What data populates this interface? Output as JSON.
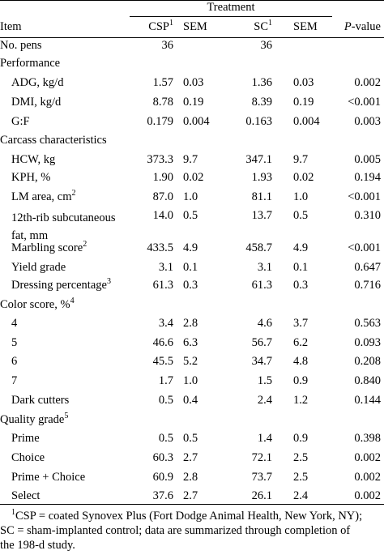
{
  "header": {
    "treatment": "Treatment",
    "item": "Item",
    "csp": "CSP",
    "csp_sup": "1",
    "sem1": "SEM",
    "sc": "SC",
    "sc_sup": "1",
    "sem2": "SEM",
    "p_italic": "P",
    "p_rest": "-value"
  },
  "rows": [
    {
      "label": "No. pens",
      "indent": false,
      "csp": "36",
      "sem1": "",
      "sc": "36",
      "sem2": "",
      "p": ""
    },
    {
      "label": "Performance",
      "indent": false,
      "csp": "",
      "sem1": "",
      "sc": "",
      "sem2": "",
      "p": ""
    },
    {
      "label": "ADG, kg/d",
      "indent": true,
      "csp": "1.57",
      "sem1": "0.03",
      "sc": "1.36",
      "sem2": "0.03",
      "p": "0.002"
    },
    {
      "label": "DMI, kg/d",
      "indent": true,
      "csp": "8.78",
      "sem1": "0.19",
      "sc": "8.39",
      "sem2": "0.19",
      "p": "<0.001"
    },
    {
      "label": "G:F",
      "indent": true,
      "csp": "0.179",
      "sem1": "0.004",
      "sc": "0.163",
      "sem2": "0.004",
      "p": "0.003"
    },
    {
      "label": "Carcass characteristics",
      "indent": false,
      "csp": "",
      "sem1": "",
      "sc": "",
      "sem2": "",
      "p": ""
    },
    {
      "label": "HCW, kg",
      "indent": true,
      "csp": "373.3",
      "sem1": "9.7",
      "sc": "347.1",
      "sem2": "9.7",
      "p": "0.005"
    },
    {
      "label": "KPH, %",
      "indent": true,
      "csp": "1.90",
      "sem1": "0.02",
      "sc": "1.93",
      "sem2": "0.02",
      "p": "0.194"
    },
    {
      "label": "LM area, cm",
      "label_sup": "2",
      "indent": true,
      "csp": "87.0",
      "sem1": "1.0",
      "sc": "81.1",
      "sem2": "1.0",
      "p": "<0.001"
    },
    {
      "label": "12th-rib subcutaneous",
      "label2": "fat, mm",
      "indent": true,
      "csp": "14.0",
      "sem1": "0.5",
      "sc": "13.7",
      "sem2": "0.5",
      "p": "0.310"
    },
    {
      "label": "Marbling score",
      "label_sup": "2",
      "indent": true,
      "csp": "433.5",
      "sem1": "4.9",
      "sc": "458.7",
      "sem2": "4.9",
      "p": "<0.001"
    },
    {
      "label": "Yield grade",
      "indent": true,
      "csp": "3.1",
      "sem1": "0.1",
      "sc": "3.1",
      "sem2": "0.1",
      "p": "0.647"
    },
    {
      "label": "Dressing percentage",
      "label_sup": "3",
      "indent": true,
      "csp": "61.3",
      "sem1": "0.3",
      "sc": "61.3",
      "sem2": "0.3",
      "p": "0.716"
    },
    {
      "label": "Color score, %",
      "label_sup": "4",
      "indent": false,
      "csp": "",
      "sem1": "",
      "sc": "",
      "sem2": "",
      "p": ""
    },
    {
      "label": "4",
      "indent": true,
      "csp": "3.4",
      "sem1": "2.8",
      "sc": "4.6",
      "sem2": "3.7",
      "p": "0.563"
    },
    {
      "label": "5",
      "indent": true,
      "csp": "46.6",
      "sem1": "6.3",
      "sc": "56.7",
      "sem2": "6.2",
      "p": "0.093"
    },
    {
      "label": "6",
      "indent": true,
      "csp": "45.5",
      "sem1": "5.2",
      "sc": "34.7",
      "sem2": "4.8",
      "p": "0.208"
    },
    {
      "label": "7",
      "indent": true,
      "csp": "1.7",
      "sem1": "1.0",
      "sc": "1.5",
      "sem2": "0.9",
      "p": "0.840"
    },
    {
      "label": "Dark cutters",
      "indent": true,
      "csp": "0.5",
      "sem1": "0.4",
      "sc": "2.4",
      "sem2": "1.2",
      "p": "0.144"
    },
    {
      "label": "Quality grade",
      "label_sup": "5",
      "indent": false,
      "csp": "",
      "sem1": "",
      "sc": "",
      "sem2": "",
      "p": ""
    },
    {
      "label": "Prime",
      "indent": true,
      "csp": "0.5",
      "sem1": "0.5",
      "sc": "1.4",
      "sem2": "0.9",
      "p": "0.398"
    },
    {
      "label": "Choice",
      "indent": true,
      "csp": "60.3",
      "sem1": "2.7",
      "sc": "72.1",
      "sem2": "2.5",
      "p": "0.002"
    },
    {
      "label": "Prime + Choice",
      "indent": true,
      "csp": "60.9",
      "sem1": "2.8",
      "sc": "73.7",
      "sem2": "2.5",
      "p": "0.002"
    },
    {
      "label": "Select",
      "indent": true,
      "csp": "37.6",
      "sem1": "2.7",
      "sc": "26.1",
      "sem2": "2.4",
      "p": "0.002"
    }
  ],
  "footnote": {
    "sup": "1",
    "line1": "CSP = coated Synovex Plus (Fort Dodge Animal Health, New York, NY);",
    "line2": "SC = sham-implanted control; data are summarized through completion of",
    "line3": "the 198-d study."
  }
}
